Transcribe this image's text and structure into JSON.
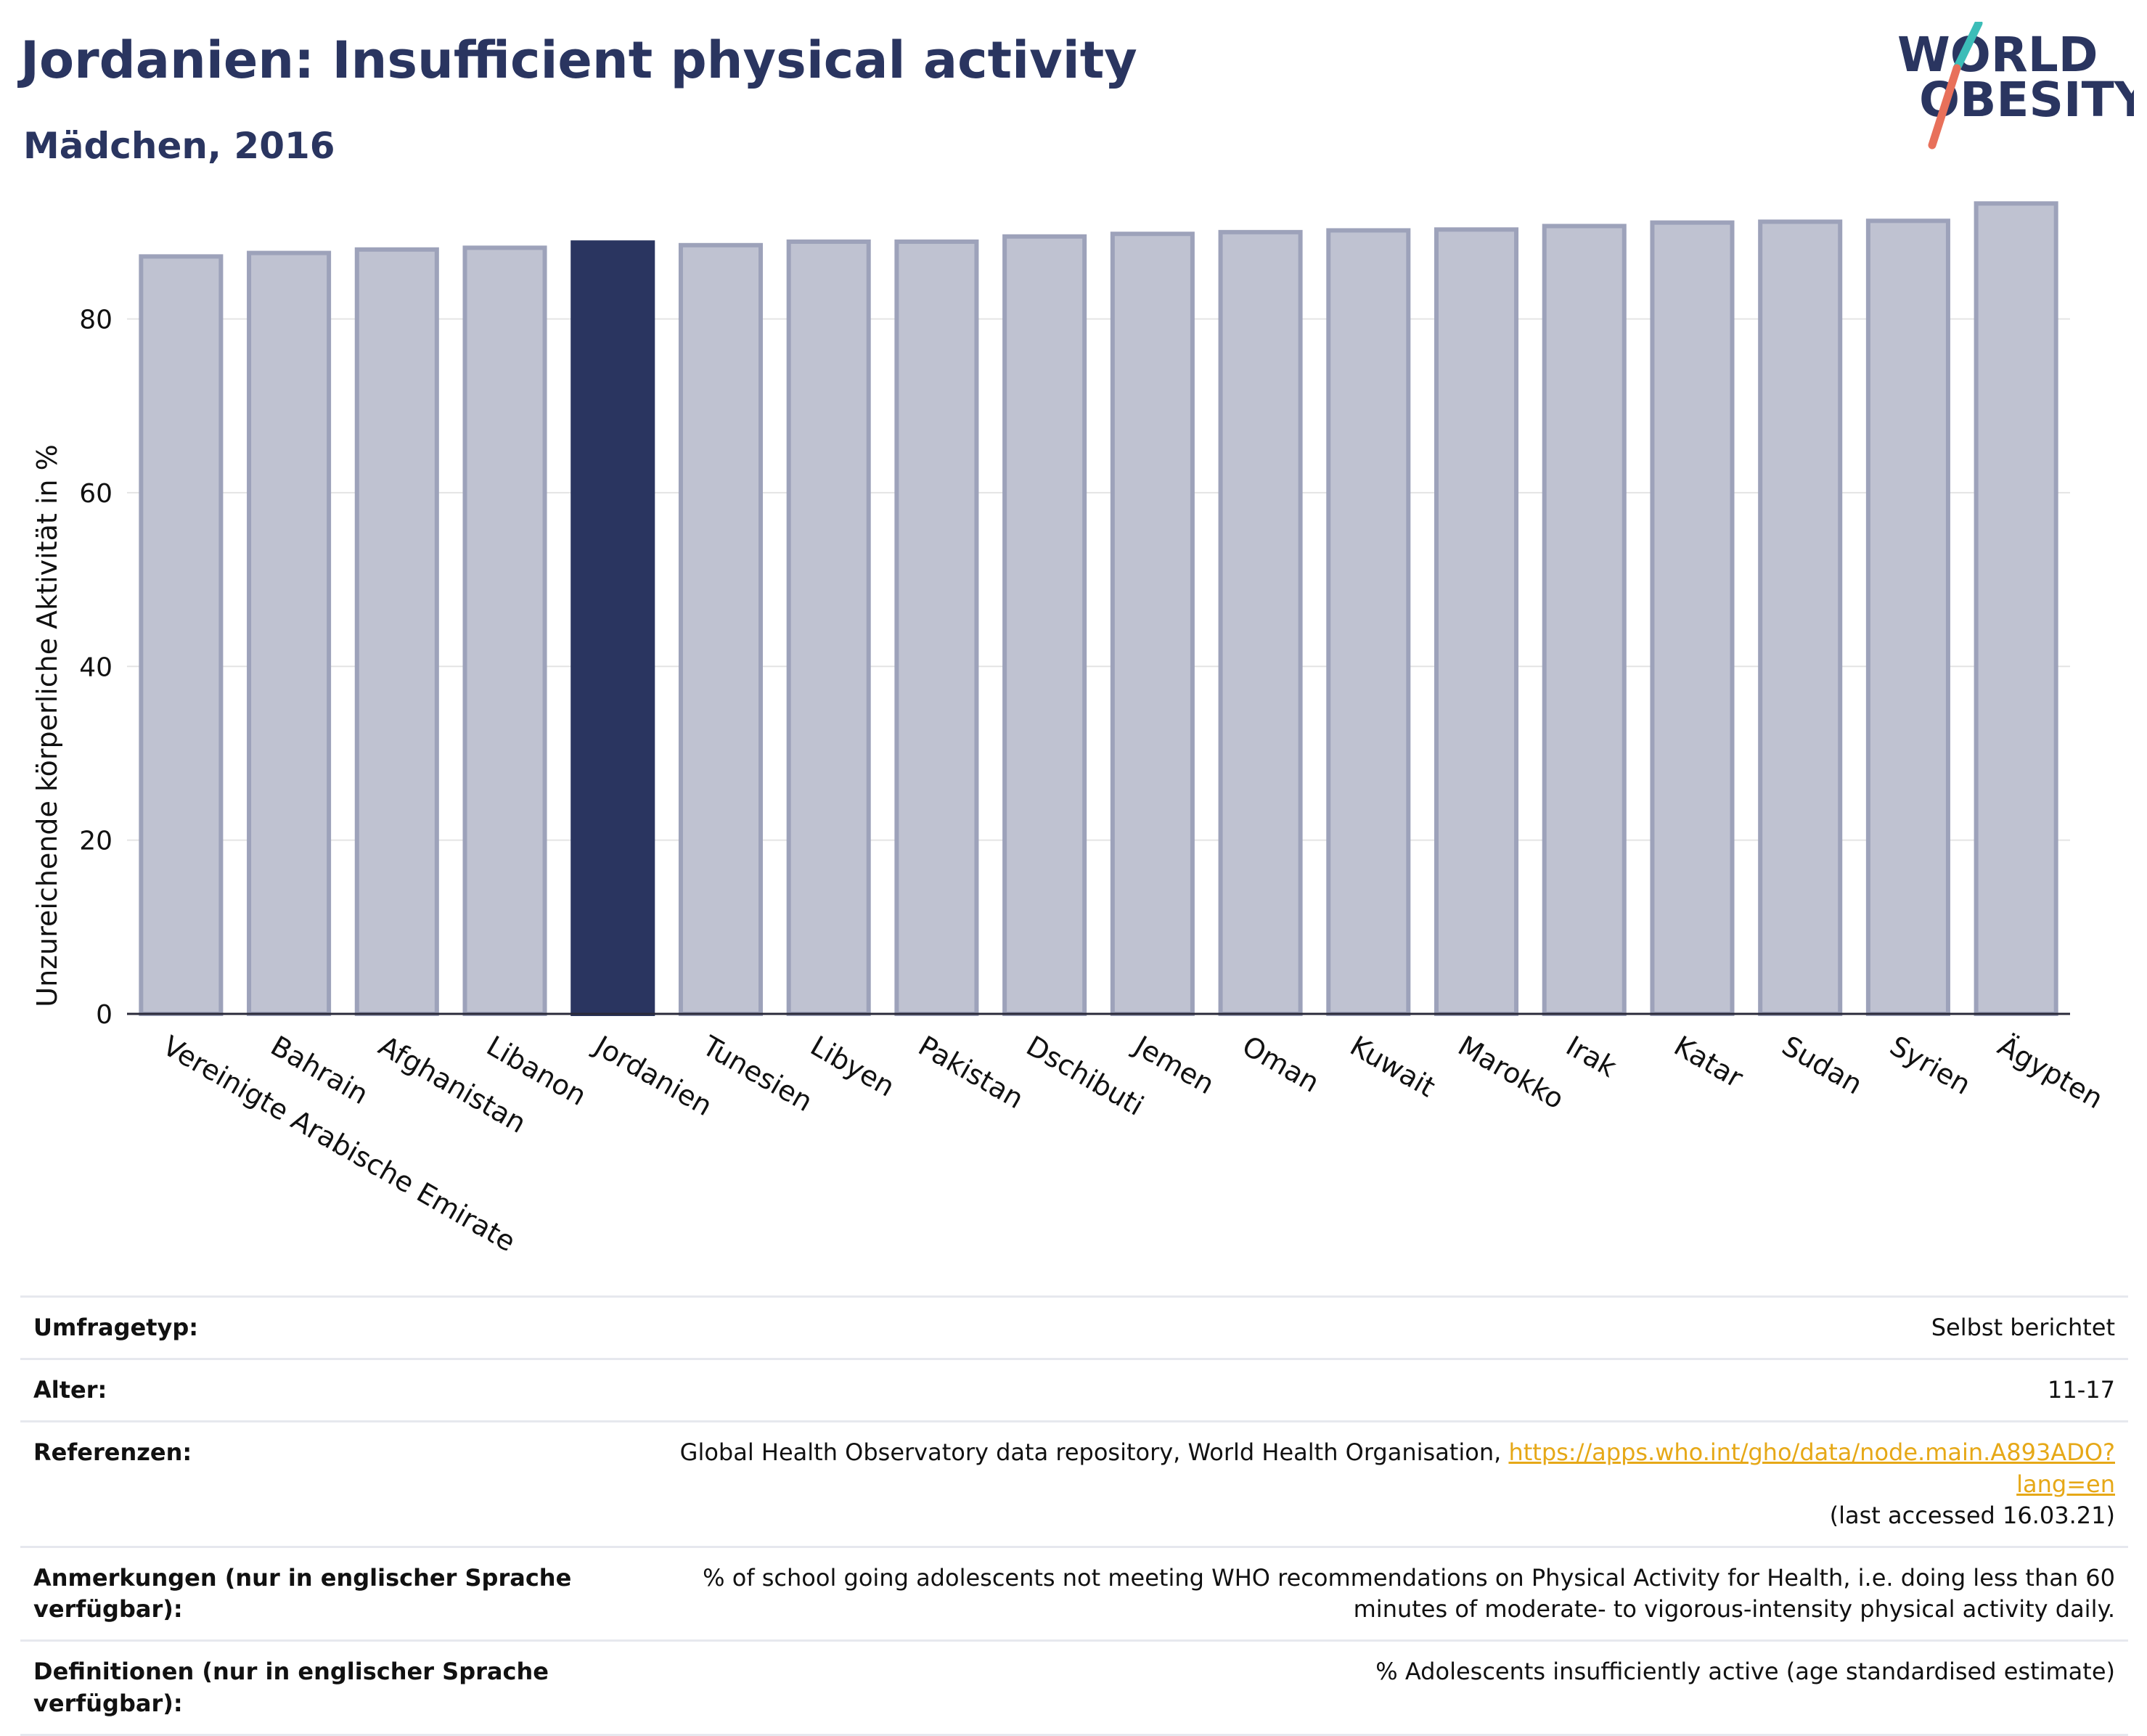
{
  "header": {
    "title": "Jordanien: Insufficient physical activity",
    "subtitle": "Mädchen, 2016"
  },
  "logo": {
    "line1": "WORLD",
    "line2": "OBESITY",
    "accent_teal": "#3cbdb8",
    "accent_coral": "#e8705a",
    "text_color": "#2a3560"
  },
  "colors": {
    "bar": "#bfc2d1",
    "bar_stroke": "#9da2ba",
    "highlight": "#2a3560",
    "grid": "#e4e4e4",
    "axis": "#2a2a3a"
  },
  "chart_data": {
    "type": "bar",
    "title": "Jordanien: Insufficient physical activity",
    "subtitle": "Mädchen, 2016",
    "xlabel": "",
    "ylabel": "Unzureichende körperliche Aktivität in %",
    "ylim": [
      0,
      95
    ],
    "yticks": [
      0,
      20,
      40,
      60,
      80
    ],
    "grid": true,
    "highlight": "Jordanien",
    "categories": [
      "Vereinigte Arabische Emirate",
      "Bahrain",
      "Afghanistan",
      "Libanon",
      "Jordanien",
      "Tunesien",
      "Libyen",
      "Pakistan",
      "Dschibuti",
      "Jemen",
      "Oman",
      "Kuwait",
      "Marokko",
      "Irak",
      "Katar",
      "Sudan",
      "Syrien",
      "Ägypten"
    ],
    "values": [
      87.2,
      87.6,
      88.0,
      88.2,
      88.8,
      88.5,
      88.9,
      88.9,
      89.5,
      89.8,
      90.0,
      90.2,
      90.3,
      90.7,
      91.1,
      91.2,
      91.3,
      93.3
    ]
  },
  "info": {
    "rows": [
      {
        "label": "Umfragetyp:",
        "value": "Selbst berichtet"
      },
      {
        "label": "Alter:",
        "value": "11-17"
      },
      {
        "label": "Referenzen:",
        "value": "Global Health Observatory data repository, World Health Organisation, ",
        "link": "https://apps.who.int/gho/data/node.main.A893ADO?lang=en",
        "suffix": "(last accessed 16.03.21)"
      },
      {
        "label": "Anmerkungen (nur in englischer Sprache verfügbar):",
        "value": "% of school going adolescents not meeting WHO recommendations on Physical Activity for Health, i.e. doing less than 60 minutes of moderate- to vigorous-intensity physical activity daily."
      },
      {
        "label": "Definitionen (nur in englischer Sprache verfügbar):",
        "value": "% Adolescents insufficiently active (age standardised estimate)"
      }
    ]
  }
}
